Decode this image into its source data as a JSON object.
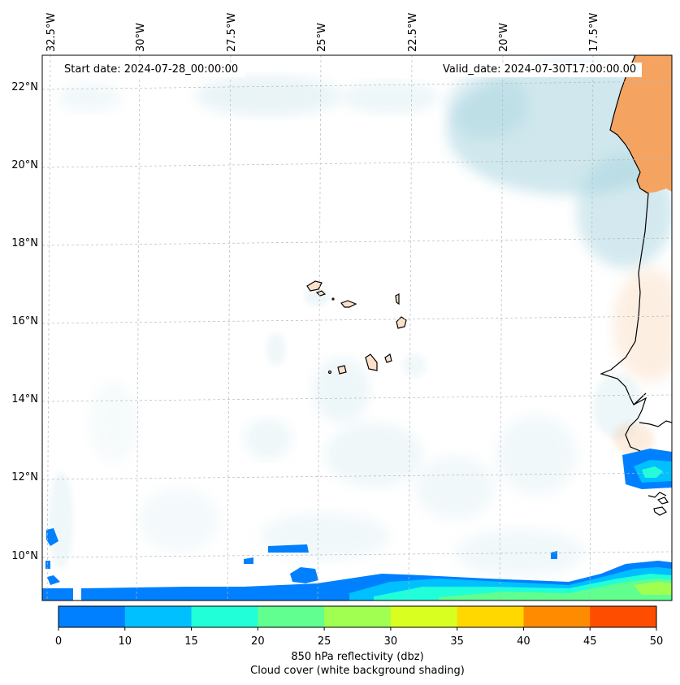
{
  "header": {
    "start_date": "Start date: 2024-07-28_00:00:00",
    "valid_date": "Valid_date: 2024-07-30T17:00:00.00"
  },
  "axes": {
    "longitude_labels": [
      "32.5°W",
      "30°W",
      "27.5°W",
      "25°W",
      "22.5°W",
      "20°W",
      "17.5°W"
    ],
    "latitude_labels": [
      "22°N",
      "20°N",
      "18°N",
      "16°N",
      "14°N",
      "12°N",
      "10°N"
    ]
  },
  "colorbar": {
    "ticks": [
      "0",
      "10",
      "15",
      "20",
      "25",
      "30",
      "35",
      "40",
      "45",
      "50"
    ],
    "colors": [
      "#0080ff",
      "#00c0ff",
      "#20ffd8",
      "#60ff90",
      "#a0ff50",
      "#d8ff20",
      "#ffd800",
      "#ff8c00",
      "#ff4d00"
    ],
    "title": "850 hPa reflectivity (dbz)",
    "subtitle": "Cloud cover (white background shading)"
  },
  "colors": {
    "land": "#f4a460",
    "cloud": "#a8d4e0",
    "coast": "#000000"
  }
}
